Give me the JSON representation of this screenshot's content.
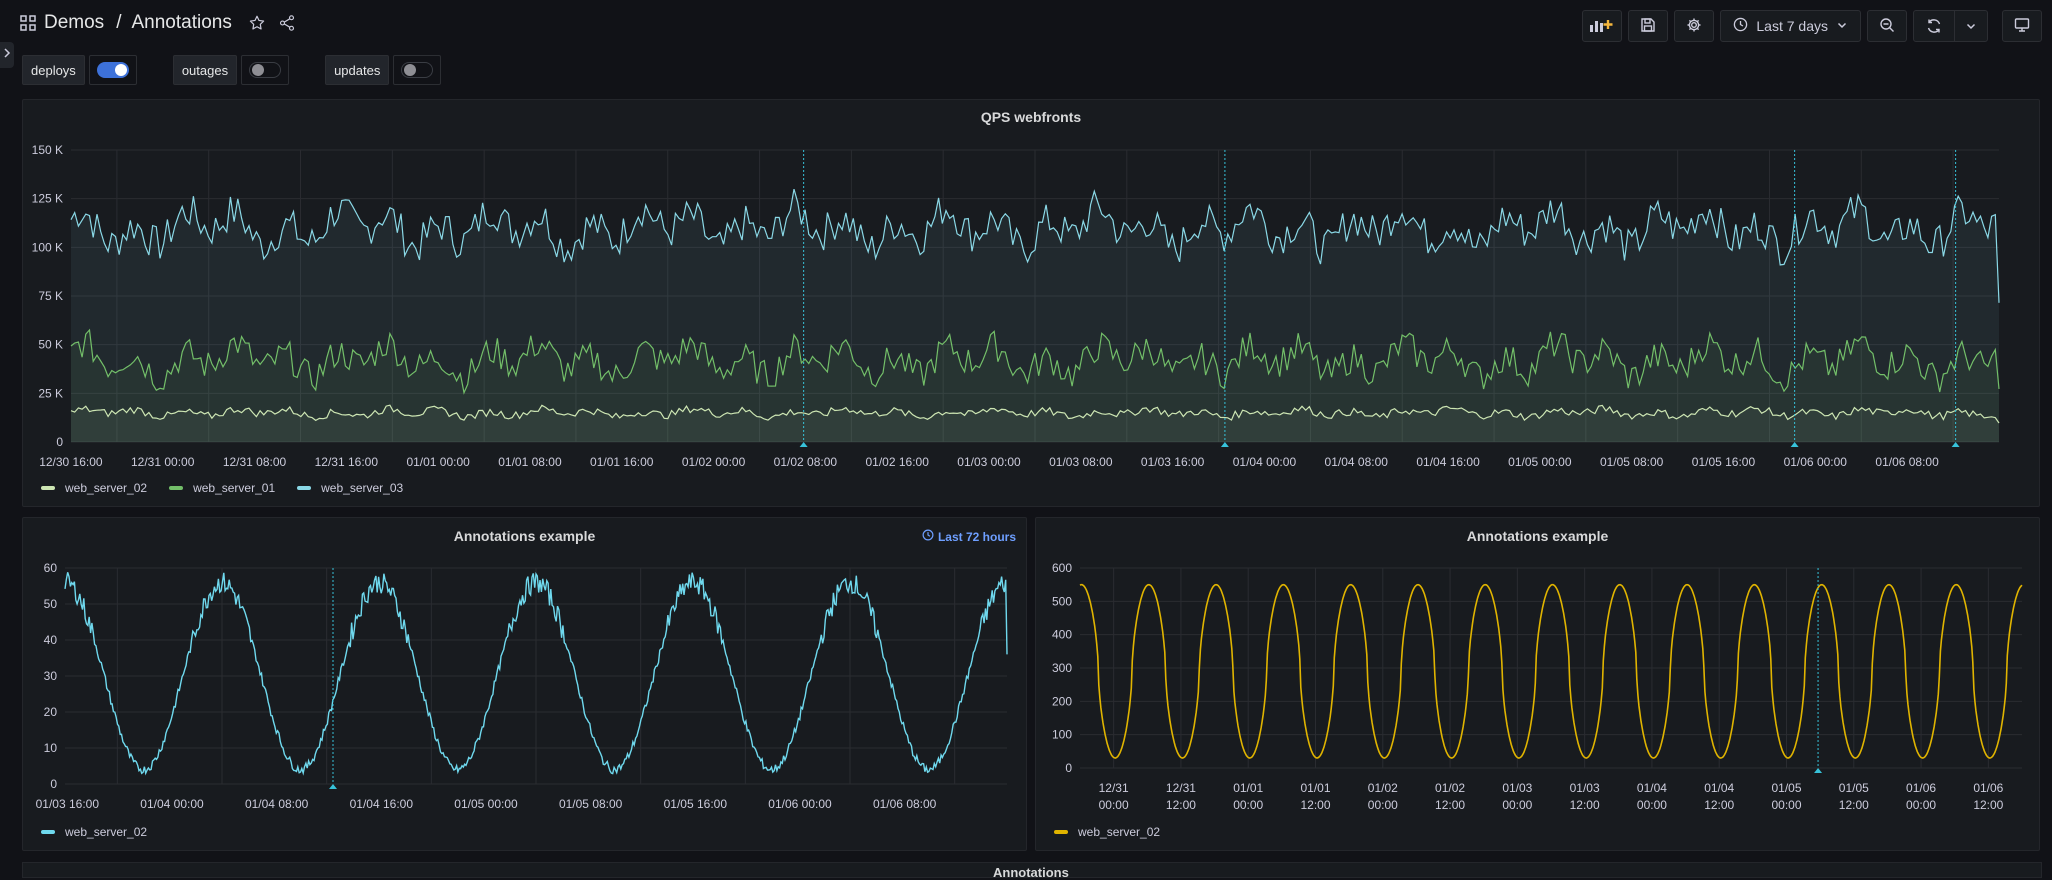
{
  "header": {
    "folder": "Demos",
    "separator": "/",
    "dashboard": "Annotations",
    "time_range": "Last 7 days",
    "icons": [
      "apps-icon",
      "star-icon",
      "share-icon",
      "add-panel-icon",
      "save-icon",
      "settings-icon",
      "clock-icon",
      "chevron-down-icon",
      "zoom-out-icon",
      "refresh-icon",
      "chevron-down-icon",
      "tv-mode-icon"
    ]
  },
  "variables": [
    {
      "label": "deploys",
      "enabled": true
    },
    {
      "label": "outages",
      "enabled": false
    },
    {
      "label": "updates",
      "enabled": false
    }
  ],
  "colors": {
    "web_server_02_top": "#cde6b3",
    "web_server_01": "#73bf69",
    "web_server_03": "#8ad8e6",
    "annotation": "#37c2d9",
    "yellow": "#e0b400",
    "single_cyan": "#6fd9ee",
    "toggle_on": "#3d71d9"
  },
  "panels": {
    "qps": {
      "title": "QPS webfronts",
      "legend": [
        "web_server_02",
        "web_server_01",
        "web_server_03"
      ]
    },
    "annotations_left": {
      "title": "Annotations example",
      "time_override": "Last 72 hours",
      "legend": [
        "web_server_02"
      ]
    },
    "annotations_right": {
      "title": "Annotations example",
      "legend": [
        "web_server_02"
      ]
    },
    "bottom": {
      "title": "Annotations"
    }
  },
  "chart_data": [
    {
      "type": "area",
      "title": "QPS webfronts",
      "ylim": [
        0,
        150000
      ],
      "y_ticks": [
        "0",
        "25 K",
        "50 K",
        "75 K",
        "100 K",
        "125 K",
        "150 K"
      ],
      "x_ticks": [
        "12/30 16:00",
        "12/31 00:00",
        "12/31 08:00",
        "12/31 16:00",
        "01/01 00:00",
        "01/01 08:00",
        "01/01 16:00",
        "01/02 00:00",
        "01/02 08:00",
        "01/02 16:00",
        "01/03 00:00",
        "01/03 08:00",
        "01/03 16:00",
        "01/04 00:00",
        "01/04 08:00",
        "01/04 16:00",
        "01/05 00:00",
        "01/05 08:00",
        "01/05 16:00",
        "01/06 00:00",
        "01/06 08:00"
      ],
      "series": [
        {
          "name": "web_server_02",
          "baseline": 15000,
          "amplitude": 2500
        },
        {
          "name": "web_server_01",
          "baseline": 42000,
          "amplitude": 10000
        },
        {
          "name": "web_server_03",
          "baseline": 110000,
          "amplitude": 12000
        }
      ],
      "annotation_x": [
        "01/02 08:30",
        "01/03 19:00",
        "01/06 00:00",
        "01/06 11:00"
      ],
      "legend": "bottom-left",
      "grid": true
    },
    {
      "type": "line",
      "title": "Annotations example",
      "ylim": [
        0,
        60
      ],
      "y_ticks": [
        "0",
        "10",
        "20",
        "30",
        "40",
        "50",
        "60"
      ],
      "x_ticks": [
        "01/03 16:00",
        "01/04 00:00",
        "01/04 08:00",
        "01/04 16:00",
        "01/05 00:00",
        "01/05 08:00",
        "01/05 16:00",
        "01/06 00:00",
        "01/06 08:00"
      ],
      "series": [
        {
          "name": "web_server_02",
          "min": 4,
          "max": 56,
          "cycles": 6
        }
      ],
      "annotation_x": [
        "01/04 15:00"
      ],
      "legend": "bottom-left",
      "grid": true
    },
    {
      "type": "line",
      "title": "Annotations example",
      "ylim": [
        0,
        600
      ],
      "y_ticks": [
        "0",
        "100",
        "200",
        "300",
        "400",
        "500",
        "600"
      ],
      "x_ticks": [
        [
          "12/31",
          "00:00"
        ],
        [
          "12/31",
          "12:00"
        ],
        [
          "01/01",
          "00:00"
        ],
        [
          "01/01",
          "12:00"
        ],
        [
          "01/02",
          "00:00"
        ],
        [
          "01/02",
          "12:00"
        ],
        [
          "01/03",
          "00:00"
        ],
        [
          "01/03",
          "12:00"
        ],
        [
          "01/04",
          "00:00"
        ],
        [
          "01/04",
          "12:00"
        ],
        [
          "01/05",
          "00:00"
        ],
        [
          "01/05",
          "12:00"
        ],
        [
          "01/06",
          "00:00"
        ],
        [
          "01/06",
          "12:00"
        ]
      ],
      "series": [
        {
          "name": "web_server_02",
          "min": 30,
          "max": 550,
          "period_hours": 12
        }
      ],
      "annotation_x": [
        "01/05 10:00"
      ],
      "legend": "bottom-left",
      "grid": true
    }
  ]
}
